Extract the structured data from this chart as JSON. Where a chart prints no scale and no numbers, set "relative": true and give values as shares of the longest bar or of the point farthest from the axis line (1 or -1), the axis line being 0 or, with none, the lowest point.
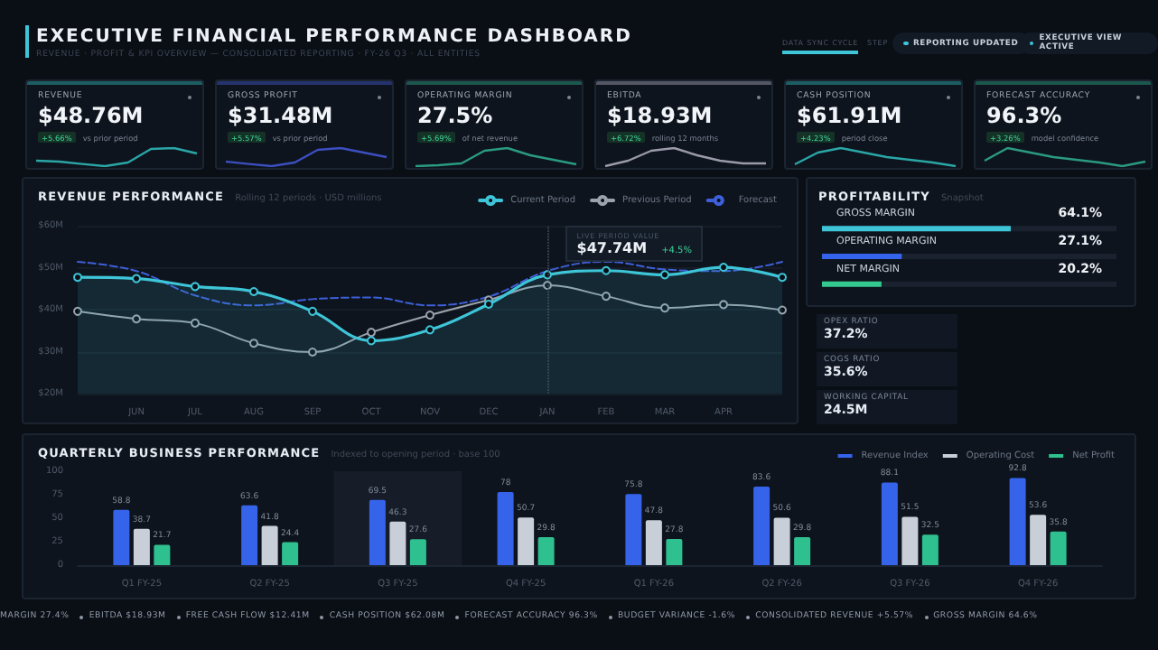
{
  "chart_data": [
    {
      "type": "other",
      "title": "EXECUTIVE FINANCIAL PERFORMANCE DASHBOARD",
      "subtitle": "REVENUE · PROFIT & KPI OVERVIEW — CONSOLIDATED REPORTING · FY-26 Q3 · ALL ENTITIES",
      "annotations": [
        "DATA SYNC CYCLE",
        "STEP",
        "REPORTING UPDATED",
        "EXECUTIVE VIEW ACTIVE"
      ]
    },
    {
      "type": "line",
      "relative": true,
      "title": "REVENUE",
      "annotations": [
        "$48.76M",
        "+5.66%",
        "vs prior period"
      ],
      "categories": [
        null,
        null,
        null,
        null,
        null,
        null,
        null,
        null
      ],
      "series": [
        {
          "color": "#2aa6a6",
          "values": [
            0.3,
            0.25,
            0.12,
            0,
            0.2,
            0.95,
            1,
            0.7
          ]
        }
      ]
    },
    {
      "type": "line",
      "relative": true,
      "title": "GROSS PROFIT",
      "annotations": [
        "$31.48M",
        "+5.57%",
        "vs prior period"
      ],
      "categories": [
        null,
        null,
        null,
        null,
        null,
        null,
        null,
        null
      ],
      "series": [
        {
          "color": "#3b4fc0",
          "values": [
            0.25,
            0.12,
            0,
            0.2,
            0.9,
            1,
            0.75,
            0.5
          ]
        }
      ]
    },
    {
      "type": "line",
      "relative": true,
      "title": "OPERATING MARGIN",
      "annotations": [
        "27.5%",
        "+5.69%",
        "of net revenue"
      ],
      "categories": [
        null,
        null,
        null,
        null,
        null,
        null,
        null,
        null
      ],
      "series": [
        {
          "color": "#2a9a80",
          "values": [
            0,
            0.05,
            0.15,
            0.85,
            1,
            0.6,
            0.35,
            0.1
          ]
        }
      ]
    },
    {
      "type": "line",
      "relative": true,
      "title": "EBITDA",
      "annotations": [
        "$18.93M",
        "+6.72%",
        "rolling 12 months"
      ],
      "categories": [
        null,
        null,
        null,
        null,
        null,
        null,
        null,
        null
      ],
      "series": [
        {
          "color": "#9a9aaa",
          "values": [
            0,
            0.3,
            0.85,
            1,
            0.6,
            0.3,
            0.15,
            0.15
          ]
        }
      ]
    },
    {
      "type": "line",
      "relative": true,
      "title": "CASH POSITION",
      "annotations": [
        "$61.91M",
        "+4.23%",
        "period close"
      ],
      "categories": [
        null,
        null,
        null,
        null,
        null,
        null,
        null,
        null
      ],
      "series": [
        {
          "color": "#2aa6a6",
          "values": [
            0.1,
            0.75,
            1,
            0.75,
            0.5,
            0.35,
            0.2,
            0
          ]
        }
      ]
    },
    {
      "type": "line",
      "relative": true,
      "title": "FORECAST ACCURACY",
      "annotations": [
        "96.3%",
        "+3.26%",
        "model confidence"
      ],
      "categories": [
        null,
        null,
        null,
        null,
        null,
        null,
        null,
        null
      ],
      "series": [
        {
          "color": "#2a9a80",
          "values": [
            0.3,
            1,
            0.75,
            0.5,
            0.35,
            0.2,
            0,
            0.25
          ]
        }
      ]
    },
    {
      "type": "line",
      "title": "REVENUE PERFORMANCE",
      "subtitle": "Rolling 12 periods · USD millions",
      "categories": [
        null,
        "JUN",
        "JUL",
        "AUG",
        "SEP",
        "OCT",
        "NOV",
        "DEC",
        "JAN",
        "FEB",
        "MAR",
        "APR",
        null
      ],
      "ylim": [
        20,
        60
      ],
      "yticks": [
        {
          "value": 20,
          "label": "$20M"
        },
        {
          "value": 30,
          "label": "$30M"
        },
        {
          "value": 40,
          "label": "$40M"
        },
        {
          "value": 50,
          "label": "$50M"
        },
        {
          "value": 60,
          "label": "$60M"
        }
      ],
      "grid": "y",
      "legend": "top right",
      "marker": "circle",
      "series": [
        {
          "name": "Current Period",
          "type": "area",
          "color": "#3ec5d8",
          "values": [
            47.7,
            47.4,
            45.5,
            44.3,
            39.6,
            32.6,
            35.2,
            41.3,
            48.3,
            49.3,
            48.3,
            50.1,
            47.7
          ]
        },
        {
          "name": "Previous Period",
          "color": "#9aa3ad",
          "values": [
            39.6,
            37.8,
            36.8,
            32.0,
            29.9,
            34.6,
            38.7,
            42.3,
            45.8,
            43.2,
            40.4,
            41.2,
            39.9
          ]
        },
        {
          "name": "Forecast",
          "color": "#3d5fd8",
          "line_style": "dashed",
          "marker": "none",
          "values": [
            51.4,
            49.2,
            43.4,
            41.0,
            42.5,
            42.9,
            41.0,
            43.1,
            49.2,
            51.4,
            49.6,
            49.2,
            51.4
          ]
        }
      ],
      "ref_lines": [
        {
          "axis": "x",
          "value": "JAN",
          "line_style": "dotted",
          "color": "#4a5566"
        }
      ],
      "annotations": [
        "LIVE PERIOD VALUE",
        "$47.74M",
        "+4.5%"
      ]
    },
    {
      "type": "bar",
      "orientation": "horizontal",
      "title": "PROFITABILITY",
      "subtitle": "Snapshot",
      "categories": [
        "GROSS MARGIN",
        "OPERATING MARGIN",
        "NET MARGIN"
      ],
      "values": [
        64.1,
        27.1,
        20.2
      ],
      "colors": [
        "#3ec5d8",
        "#3563e9",
        "#34c98f"
      ],
      "value_labels": [
        "64.1%",
        "27.1%",
        "20.2%"
      ],
      "xlim": [
        0,
        100
      ],
      "tick_labels": "y"
    },
    {
      "type": "other",
      "annotations": [
        "OPEX RATIO",
        "37.2%",
        "COGS RATIO",
        "35.6%",
        "WORKING CAPITAL",
        "24.5M"
      ]
    },
    {
      "type": "bar",
      "title": "QUARTERLY BUSINESS PERFORMANCE",
      "subtitle": "Indexed to opening period · base 100",
      "categories": [
        "Q1 FY-25",
        "Q2 FY-25",
        "Q3 FY-25",
        "Q4 FY-25",
        "Q1 FY-26",
        "Q2 FY-26",
        "Q3 FY-26",
        "Q4 FY-26"
      ],
      "ylim": [
        0,
        100
      ],
      "yticks": [
        0,
        25,
        50,
        75,
        100
      ],
      "data_labels": true,
      "legend": "top right",
      "bands": [
        {
          "axis": "x",
          "from": "Q3 FY-25",
          "to": "Q3 FY-25",
          "color": "#161d28"
        }
      ],
      "series": [
        {
          "name": "Revenue Index",
          "color": "#3563e9",
          "values": [
            58.8,
            63.6,
            69.5,
            78.0,
            75.8,
            83.6,
            88.1,
            92.8
          ]
        },
        {
          "name": "Operating Cost",
          "color": "#c9cfd8",
          "values": [
            38.7,
            41.8,
            46.3,
            50.7,
            47.8,
            50.6,
            51.5,
            53.6
          ]
        },
        {
          "name": "Net Profit",
          "color": "#2fc08f",
          "values": [
            21.7,
            24.4,
            27.6,
            29.8,
            27.8,
            29.8,
            32.5,
            35.8
          ]
        }
      ]
    },
    {
      "type": "other",
      "annotations": [
        "MARGIN 27.4%",
        "EBITDA $18.93M",
        "FREE CASH FLOW $12.41M",
        "CASH POSITION $62.08M",
        "FORECAST ACCURACY 96.3%",
        "BUDGET VARIANCE -1.6%",
        "CONSOLIDATED REVENUE +5.57%",
        "GROSS MARGIN 64.6%"
      ]
    }
  ]
}
